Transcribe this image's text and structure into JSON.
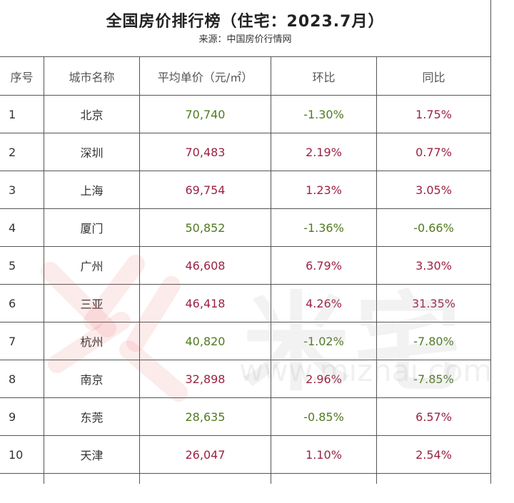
{
  "header": {
    "title": "全国房价排行榜（住宅：2023.7月）",
    "source": "来源：中国房价行情网"
  },
  "table": {
    "columns": [
      "序号",
      "城市名称",
      "平均单价（元/㎡）",
      "环比",
      "同比"
    ],
    "rows": [
      {
        "rank": "1",
        "city": "北京",
        "price": "70,740",
        "price_trend": "down",
        "mom": "-1.30%",
        "mom_trend": "down",
        "yoy": "1.75%",
        "yoy_trend": "up"
      },
      {
        "rank": "2",
        "city": "深圳",
        "price": "70,483",
        "price_trend": "up",
        "mom": "2.19%",
        "mom_trend": "up",
        "yoy": "0.77%",
        "yoy_trend": "up"
      },
      {
        "rank": "3",
        "city": "上海",
        "price": "69,754",
        "price_trend": "up",
        "mom": "1.23%",
        "mom_trend": "up",
        "yoy": "3.05%",
        "yoy_trend": "up"
      },
      {
        "rank": "4",
        "city": "厦门",
        "price": "50,852",
        "price_trend": "down",
        "mom": "-1.36%",
        "mom_trend": "down",
        "yoy": "-0.66%",
        "yoy_trend": "down"
      },
      {
        "rank": "5",
        "city": "广州",
        "price": "46,608",
        "price_trend": "up",
        "mom": "6.79%",
        "mom_trend": "up",
        "yoy": "3.30%",
        "yoy_trend": "up"
      },
      {
        "rank": "6",
        "city": "三亚",
        "price": "46,418",
        "price_trend": "up",
        "mom": "4.26%",
        "mom_trend": "up",
        "yoy": "31.35%",
        "yoy_trend": "up"
      },
      {
        "rank": "7",
        "city": "杭州",
        "price": "40,820",
        "price_trend": "down",
        "mom": "-1.02%",
        "mom_trend": "down",
        "yoy": "-7.80%",
        "yoy_trend": "down"
      },
      {
        "rank": "8",
        "city": "南京",
        "price": "32,898",
        "price_trend": "up",
        "mom": "2.96%",
        "mom_trend": "up",
        "yoy": "-7.85%",
        "yoy_trend": "down"
      },
      {
        "rank": "9",
        "city": "东莞",
        "price": "28,635",
        "price_trend": "down",
        "mom": "-0.85%",
        "mom_trend": "down",
        "yoy": "6.57%",
        "yoy_trend": "up"
      },
      {
        "rank": "10",
        "city": "天津",
        "price": "26,047",
        "price_trend": "up",
        "mom": "1.10%",
        "mom_trend": "up",
        "yoy": "2.54%",
        "yoy_trend": "up"
      }
    ]
  },
  "watermark": {
    "text": "米宅",
    "url": "www.mizhai.com"
  },
  "colors": {
    "up": "#9b2243",
    "down": "#4f7a1f",
    "border": "#555555"
  }
}
